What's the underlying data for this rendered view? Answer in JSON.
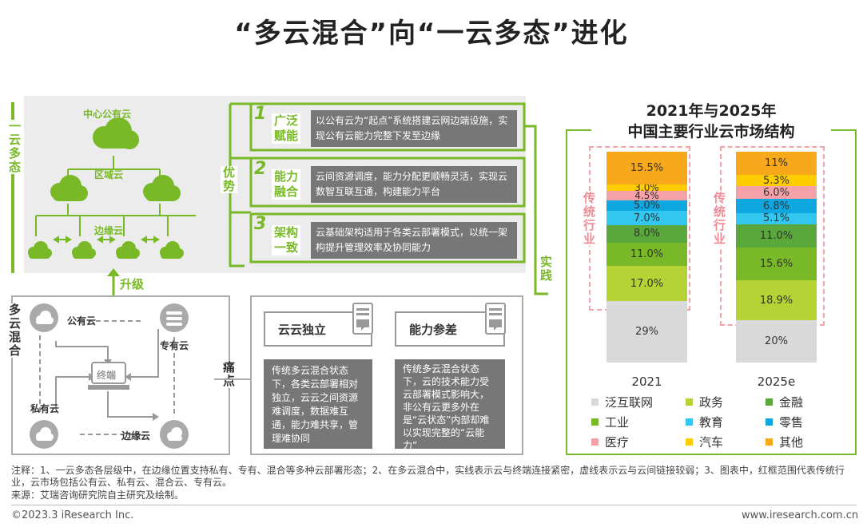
{
  "page_title": "“多云混合”向“一云多态”进化",
  "top_left": {
    "side_label": "一云多态",
    "central_cloud": "中心公有云",
    "regional_cloud": "区域云",
    "edge_cloud": "边缘云",
    "upgrade_label": "升级"
  },
  "bottom_left": {
    "side_label": "多云混合",
    "public_cloud": "公有云",
    "private_cloud": "私有云",
    "dedicated_cloud": "专有云",
    "edge_cloud": "边缘云",
    "terminal": "终端"
  },
  "advantages": {
    "side_label": "优势",
    "items": [
      {
        "num": "1",
        "label": "广泛赋能",
        "text": "以公有云为“起点”系统搭建云网边端设施，实现公有云能力完整下发至边缘"
      },
      {
        "num": "2",
        "label": "能力融合",
        "text": "云间资源调度，能力分配更顺畅灵活，实现云数智互联互通，构建能力平台"
      },
      {
        "num": "3",
        "label": "架构一致",
        "text": "云基础架构适用于各类云部署模式，以统一架构提升管理效率及协同能力"
      }
    ]
  },
  "pain_points": {
    "side_label": "痛点",
    "items": [
      {
        "title": "云云独立",
        "text": "传统多云混合状态下，各类云部署相对独立，云云之间资源难调度，数据难互通，能力难共享，管理难协同"
      },
      {
        "title": "能力参差",
        "text": "传统多云混合状态下，云的技术能力受云部署模式影响大，非公有云更多外在是“云状态”内部却难以实现完整的“云能力”"
      }
    ]
  },
  "practice_label": "实践",
  "chart_data": {
    "type": "bar",
    "title": "2021年与2025年\n中国主要行业云市场结构",
    "stacked": true,
    "percent": true,
    "categories": [
      "2021",
      "2025e"
    ],
    "series": [
      {
        "name": "泛互联网",
        "color": "#d9d9d9",
        "values": [
          29,
          20
        ]
      },
      {
        "name": "政务",
        "color": "#b5d334",
        "values": [
          17.0,
          18.9
        ]
      },
      {
        "name": "工业",
        "color": "#79b928",
        "values": [
          11.0,
          15.6
        ]
      },
      {
        "name": "金融",
        "color": "#5aa83c",
        "values": [
          8.0,
          11.0
        ]
      },
      {
        "name": "教育",
        "color": "#33c6ef",
        "values": [
          7.0,
          5.1
        ]
      },
      {
        "name": "零售",
        "color": "#0ea7e0",
        "values": [
          5.0,
          6.8
        ]
      },
      {
        "name": "医疗",
        "color": "#f4a1a8",
        "values": [
          4.5,
          6.0
        ]
      },
      {
        "name": "汽车",
        "color": "#ffcc00",
        "values": [
          3.0,
          5.3
        ]
      },
      {
        "name": "其他",
        "color": "#f7a81b",
        "values": [
          15.5,
          11
        ]
      }
    ],
    "value_labels": [
      [
        "29%",
        "17.0%",
        "11.0%",
        "8.0%",
        "7.0%",
        "5.0%",
        "4.5%",
        "3.0%",
        "15.5%"
      ],
      [
        "20%",
        "18.9%",
        "15.6%",
        "11.0%",
        "5.1%",
        "6.8%",
        "6.0%",
        "5.3%",
        "11%"
      ]
    ],
    "annotation": "传统行业"
  },
  "legend_order": [
    "泛互联网",
    "政务",
    "金融",
    "工业",
    "教育",
    "零售",
    "医疗",
    "汽车",
    "其他"
  ],
  "footer": {
    "note": "注释：1、一云多态各层级中，在边缘位置支持私有、专有、混合等多种云部署形态；2、在多云混合中，实线表示云与终端连接紧密，虚线表示云与云间链接较弱；3、图表中，红框范围代表传统行业，云市场包括公有云、私有云、混合云、专有云。",
    "source": "来源：艾瑞咨询研究院自主研究及绘制。",
    "copyright": "©2023.3 iResearch Inc.",
    "website": "www.iresearch.com.cn"
  }
}
